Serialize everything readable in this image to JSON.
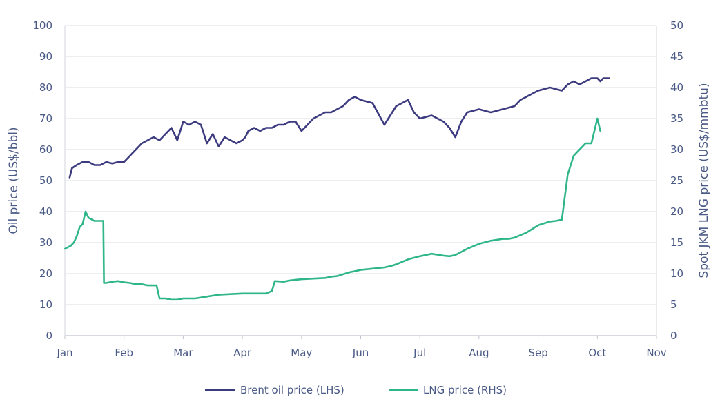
{
  "colors": {
    "brent": "#3d3b80",
    "lng": "#2fb58a",
    "grid": "#d9dde3",
    "text": "#4a5a86"
  },
  "chart_data": {
    "type": "line",
    "x_categories": [
      "Jan",
      "Feb",
      "Mar",
      "Apr",
      "May",
      "Jun",
      "Jul",
      "Aug",
      "Sep",
      "Oct",
      "Nov"
    ],
    "ylabel_left": "Oil price (US$/bbl)",
    "ylabel_right": "Spot JKM LNG price (US$/mmbtu)",
    "ylim_left": [
      0,
      100
    ],
    "ylim_right": [
      0,
      50
    ],
    "yticks_left": [
      "0",
      "10",
      "20",
      "30",
      "40",
      "50",
      "60",
      "70",
      "80",
      "90",
      "100"
    ],
    "yticks_right": [
      "0",
      "5",
      "10",
      "15",
      "20",
      "25",
      "30",
      "35",
      "40",
      "45",
      "50"
    ],
    "grid": "horizontal",
    "legend_position": "bottom-center",
    "series": [
      {
        "name": "Brent oil price (LHS)",
        "axis": "left",
        "x": [
          0.08,
          0.12,
          0.2,
          0.3,
          0.4,
          0.5,
          0.6,
          0.7,
          0.8,
          0.9,
          1.0,
          1.1,
          1.2,
          1.3,
          1.4,
          1.5,
          1.6,
          1.7,
          1.8,
          1.9,
          2.0,
          2.1,
          2.2,
          2.3,
          2.4,
          2.5,
          2.6,
          2.7,
          2.8,
          2.9,
          3.0,
          3.05,
          3.1,
          3.2,
          3.3,
          3.4,
          3.5,
          3.6,
          3.7,
          3.8,
          3.9,
          4.0,
          4.1,
          4.2,
          4.3,
          4.4,
          4.5,
          4.6,
          4.7,
          4.8,
          4.9,
          5.0,
          5.2,
          5.4,
          5.6,
          5.8,
          5.9,
          6.0,
          6.2,
          6.4,
          6.5,
          6.6,
          6.7,
          6.8,
          7.0,
          7.2,
          7.4,
          7.6,
          7.7,
          7.8,
          7.9,
          8.0,
          8.2,
          8.4,
          8.5,
          8.6,
          8.7,
          8.8,
          8.9,
          9.0,
          9.05,
          9.1,
          9.2
        ],
        "values": [
          51,
          54,
          55,
          56,
          56,
          55,
          55,
          56,
          55.5,
          56,
          56,
          58,
          60,
          62,
          63,
          64,
          63,
          65,
          67,
          63,
          69,
          68,
          69,
          68,
          62,
          65,
          61,
          64,
          63,
          62,
          63,
          64,
          66,
          67,
          66,
          67,
          67,
          68,
          68,
          69,
          69,
          66,
          68,
          70,
          71,
          72,
          72,
          73,
          74,
          76,
          77,
          76,
          75,
          68,
          74,
          76,
          72,
          70,
          71,
          69,
          67,
          64,
          69,
          72,
          73,
          72,
          73,
          74,
          76,
          77,
          78,
          79,
          80,
          79,
          81,
          82,
          81,
          82,
          83,
          83,
          82,
          83,
          83
        ]
      },
      {
        "name": "LNG price (RHS)",
        "axis": "right",
        "x": [
          0.0,
          0.1,
          0.15,
          0.2,
          0.25,
          0.3,
          0.35,
          0.4,
          0.5,
          0.6,
          0.65,
          0.66,
          0.7,
          0.8,
          0.9,
          1.0,
          1.1,
          1.2,
          1.3,
          1.4,
          1.5,
          1.55,
          1.6,
          1.7,
          1.8,
          1.9,
          2.0,
          2.2,
          2.4,
          2.6,
          2.8,
          3.0,
          3.2,
          3.4,
          3.5,
          3.55,
          3.7,
          3.8,
          4.0,
          4.2,
          4.4,
          4.5,
          4.6,
          4.8,
          5.0,
          5.2,
          5.4,
          5.5,
          5.6,
          5.8,
          6.0,
          6.2,
          6.4,
          6.5,
          6.6,
          6.8,
          7.0,
          7.2,
          7.4,
          7.5,
          7.6,
          7.8,
          8.0,
          8.2,
          8.3,
          8.35,
          8.4,
          8.5,
          8.6,
          8.7,
          8.8,
          8.9,
          8.95,
          9.0,
          9.05
        ],
        "values": [
          14,
          14.5,
          15,
          16,
          17.5,
          18,
          20,
          19,
          18.5,
          18.5,
          18.5,
          8.5,
          8.5,
          8.7,
          8.8,
          8.6,
          8.5,
          8.3,
          8.3,
          8.1,
          8.1,
          8.1,
          6.0,
          6.0,
          5.8,
          5.8,
          6.0,
          6.0,
          6.3,
          6.6,
          6.7,
          6.8,
          6.8,
          6.8,
          7.2,
          8.8,
          8.7,
          8.9,
          9.1,
          9.2,
          9.3,
          9.5,
          9.6,
          10.2,
          10.6,
          10.8,
          11.0,
          11.2,
          11.5,
          12.3,
          12.8,
          13.2,
          12.9,
          12.8,
          13.0,
          14.0,
          14.8,
          15.3,
          15.6,
          15.6,
          15.8,
          16.6,
          17.8,
          18.4,
          18.5,
          18.6,
          18.7,
          26,
          29,
          30,
          31,
          31,
          33,
          35,
          33
        ]
      }
    ]
  }
}
